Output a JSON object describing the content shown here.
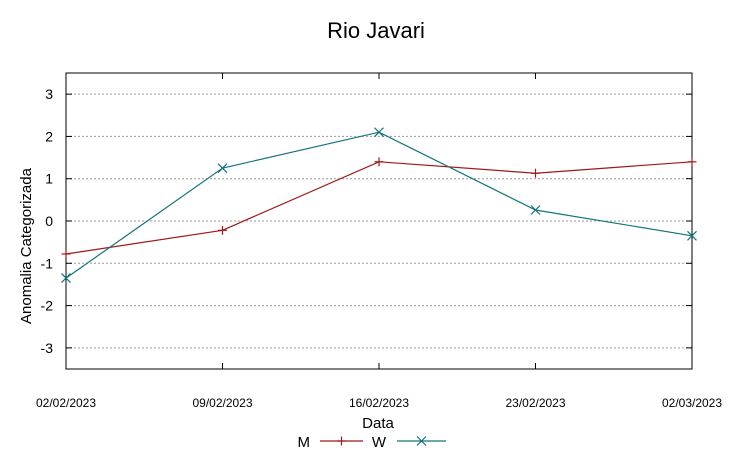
{
  "chart_data": {
    "type": "line",
    "title": "Rio Javari",
    "xlabel": "Data",
    "ylabel": "Anomalia Categorizada",
    "categories": [
      "02/02/2023",
      "09/02/2023",
      "16/02/2023",
      "23/02/2023",
      "02/03/2023"
    ],
    "ylim": [
      -3.5,
      3.5
    ],
    "yticks": [
      3,
      2,
      1,
      0,
      -1,
      -2,
      -3
    ],
    "ytick_labels": [
      "3",
      "2",
      "1",
      "0",
      "-1",
      "-2",
      "-3"
    ],
    "grid": true,
    "legend_position": "bottom-center",
    "series": [
      {
        "name": "M",
        "color": "#a01818",
        "marker": "plus",
        "values": [
          -0.78,
          -0.22,
          1.4,
          1.13,
          1.4
        ]
      },
      {
        "name": "W",
        "color": "#12767a",
        "marker": "cross",
        "values": [
          -1.35,
          1.25,
          2.1,
          0.26,
          -0.35
        ]
      }
    ]
  }
}
